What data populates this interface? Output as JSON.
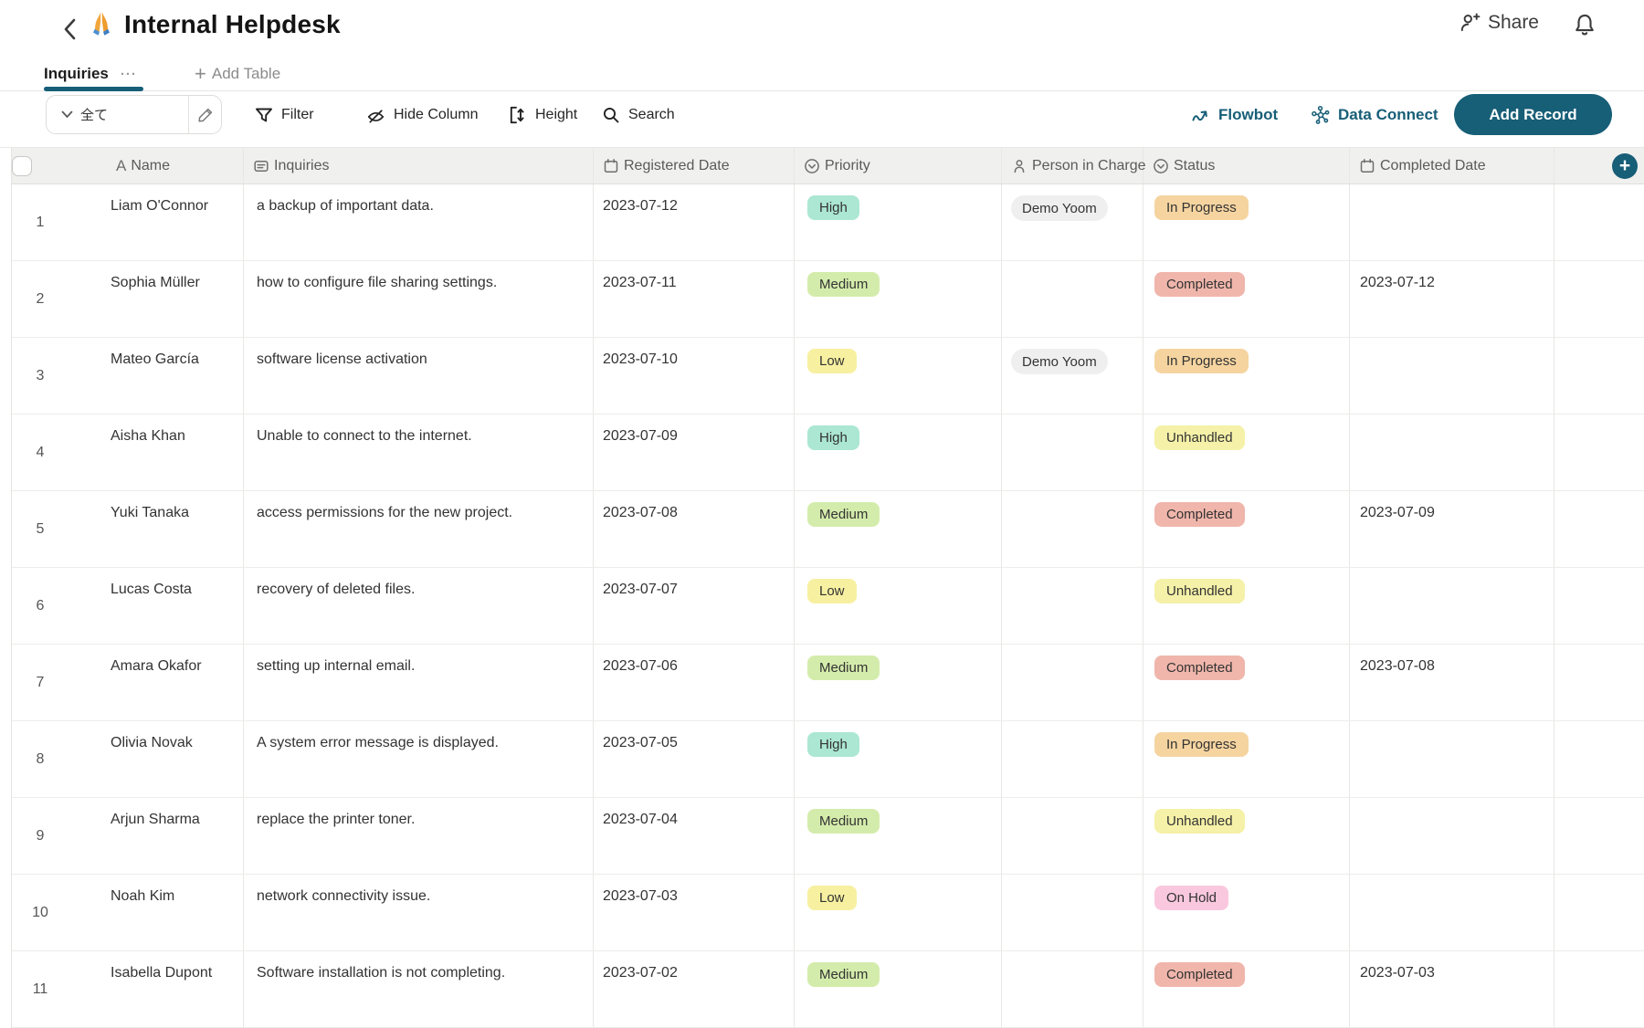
{
  "accent": "#175E77",
  "top_stripe_color": "#F2CFD5",
  "titlebar": {
    "title": "Internal Helpdesk",
    "emoji": "praying-hands",
    "share_label": "Share"
  },
  "tabs": {
    "active_label": "Inquiries",
    "more": "···",
    "add_table_plus": "+",
    "add_table_label": "Add Table"
  },
  "toolbar": {
    "view_selector_value": "全て",
    "filter_label": "Filter",
    "hide_column_label": "Hide Column",
    "height_label": "Height",
    "search_label": "Search",
    "flowbot_label": "Flowbot",
    "data_connect_label": "Data Connect",
    "add_record_label": "Add Record",
    "add_column_plus": "+"
  },
  "table": {
    "columns": [
      {
        "id": "name",
        "label": "Name",
        "icon": "letter-a"
      },
      {
        "id": "inquiries",
        "label": "Inquiries",
        "icon": "longtext"
      },
      {
        "id": "registered",
        "label": "Registered Date",
        "icon": "calendar"
      },
      {
        "id": "priority",
        "label": "Priority",
        "icon": "select"
      },
      {
        "id": "person",
        "label": "Person in Charge",
        "icon": "person"
      },
      {
        "id": "status",
        "label": "Status",
        "icon": "select"
      },
      {
        "id": "completed",
        "label": "Completed Date",
        "icon": "calendar"
      }
    ],
    "rows": [
      {
        "num": "1",
        "name": "Liam O'Connor",
        "inquiry": "a backup of important data.",
        "registered": "2023-07-12",
        "priority": "High",
        "person": "Demo Yoom",
        "status": "In Progress",
        "completed": ""
      },
      {
        "num": "2",
        "name": "Sophia Müller",
        "inquiry": "how to configure file sharing settings.",
        "registered": "2023-07-11",
        "priority": "Medium",
        "person": "",
        "status": "Completed",
        "completed": "2023-07-12"
      },
      {
        "num": "3",
        "name": "Mateo García",
        "inquiry": "software license activation",
        "registered": "2023-07-10",
        "priority": "Low",
        "person": "Demo Yoom",
        "status": "In Progress",
        "completed": ""
      },
      {
        "num": "4",
        "name": "Aisha Khan",
        "inquiry": "Unable to connect to the internet.",
        "registered": "2023-07-09",
        "priority": "High",
        "person": "",
        "status": "Unhandled",
        "completed": ""
      },
      {
        "num": "5",
        "name": "Yuki Tanaka",
        "inquiry": "access permissions for the new project.",
        "registered": "2023-07-08",
        "priority": "Medium",
        "person": "",
        "status": "Completed",
        "completed": "2023-07-09"
      },
      {
        "num": "6",
        "name": "Lucas Costa",
        "inquiry": "recovery of deleted files.",
        "registered": "2023-07-07",
        "priority": "Low",
        "person": "",
        "status": "Unhandled",
        "completed": ""
      },
      {
        "num": "7",
        "name": "Amara Okafor",
        "inquiry": "setting up internal email.",
        "registered": "2023-07-06",
        "priority": "Medium",
        "person": "",
        "status": "Completed",
        "completed": "2023-07-08"
      },
      {
        "num": "8",
        "name": "Olivia Novak",
        "inquiry": "A system error message is displayed.",
        "registered": "2023-07-05",
        "priority": "High",
        "person": "",
        "status": "In Progress",
        "completed": ""
      },
      {
        "num": "9",
        "name": "Arjun Sharma",
        "inquiry": "replace the printer toner.",
        "registered": "2023-07-04",
        "priority": "Medium",
        "person": "",
        "status": "Unhandled",
        "completed": ""
      },
      {
        "num": "10",
        "name": "Noah Kim",
        "inquiry": "network connectivity issue.",
        "registered": "2023-07-03",
        "priority": "Low",
        "person": "",
        "status": "On Hold",
        "completed": ""
      },
      {
        "num": "11",
        "name": "Isabella Dupont",
        "inquiry": "Software installation is not completing.",
        "registered": "2023-07-02",
        "priority": "Medium",
        "person": "",
        "status": "Completed",
        "completed": "2023-07-03"
      }
    ]
  },
  "palette": {
    "priority": {
      "High": "#ABE7D3",
      "Medium": "#D4ECAB",
      "Low": "#F7F0A0"
    },
    "status": {
      "In Progress": "#F5D4A0",
      "Completed": "#F0B6AB",
      "Unhandled": "#F5F1A8",
      "On Hold": "#F9C8DE"
    },
    "person_chip": "#EFEFEF"
  }
}
